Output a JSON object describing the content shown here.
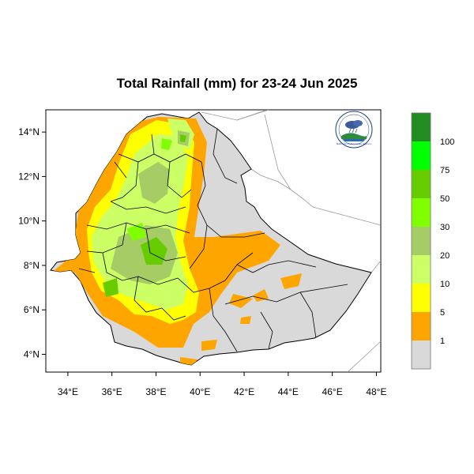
{
  "title": "Total Rainfall (mm) for 23-24 Jun 2025",
  "map": {
    "lon_range": [
      33,
      48.2
    ],
    "lat_range": [
      3.2,
      15
    ],
    "x_ticks": [
      "34°E",
      "36°E",
      "38°E",
      "40°E",
      "42°E",
      "44°E",
      "46°E",
      "48°E"
    ],
    "x_tick_values": [
      34,
      36,
      38,
      40,
      42,
      44,
      46,
      48
    ],
    "y_ticks": [
      "14°N",
      "12°N",
      "10°N",
      "8°N",
      "6°N",
      "4°N"
    ],
    "y_tick_values": [
      14,
      12,
      10,
      8,
      6,
      4
    ],
    "land_color": "#d9d9d9",
    "border_color": "#000000",
    "outside_border_color": "#9a9a9a"
  },
  "legend": {
    "labels": [
      "1",
      "5",
      "10",
      "20",
      "30",
      "50",
      "75",
      "100"
    ],
    "colors": [
      "#d9d9d9",
      "#ffa500",
      "#ffff00",
      "#ccff66",
      "#a6cc66",
      "#80ff00",
      "#66cc00",
      "#00ff00",
      "#228b22"
    ]
  },
  "logo": {
    "text": "National Meteorology Agency",
    "icon": "cloud-rain-logo-icon"
  }
}
